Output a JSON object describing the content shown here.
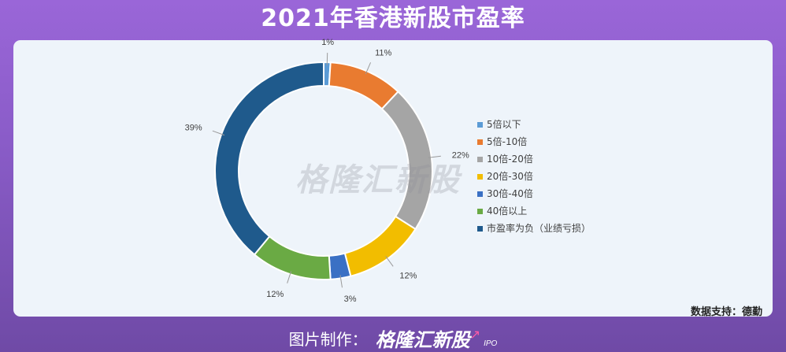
{
  "header": {
    "title": "2021年香港新股市盈率"
  },
  "watermark": "格隆汇新股",
  "source": "数据支持：德勤",
  "footer": {
    "label": "图片制作：",
    "brand": "格隆汇新股",
    "sub": "IPO"
  },
  "chart_data": {
    "type": "pie",
    "donut": true,
    "legend_position": "right",
    "categories": [
      "5倍以下",
      "5倍-10倍",
      "10倍-20倍",
      "20倍-30倍",
      "30倍-40倍",
      "40倍以上",
      "市盈率为负（业绩亏损）"
    ],
    "values": [
      1,
      11,
      22,
      12,
      3,
      12,
      39
    ],
    "labels": [
      "1%",
      "11%",
      "22%",
      "12%",
      "3%",
      "12%",
      "39%"
    ],
    "colors": [
      "#5b9bd5",
      "#e97b30",
      "#a5a5a5",
      "#f2bd00",
      "#3a70c4",
      "#6aaa44",
      "#1f5a8c"
    ]
  }
}
